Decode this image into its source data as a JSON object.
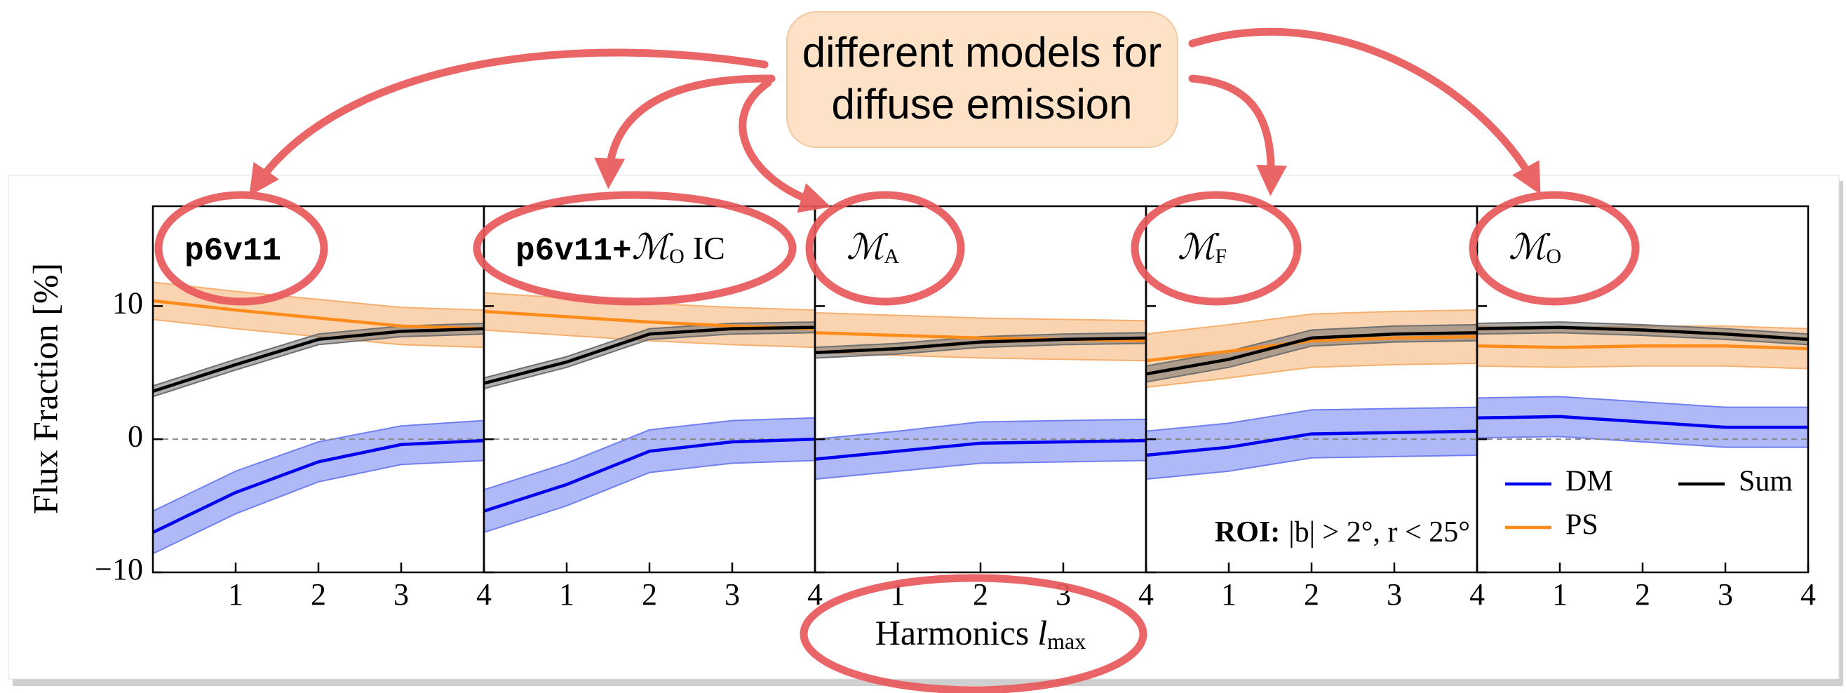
{
  "figure": {
    "callout": [
      "different models for",
      "diffuse emission"
    ]
  },
  "chart_data": [
    {
      "type": "line",
      "title": "p6v11",
      "y_label": "Flux Fraction [%]",
      "x": [
        0,
        1,
        2,
        3,
        4
      ],
      "xlim": [
        0,
        4
      ],
      "xticks": [
        1,
        2,
        3,
        4
      ],
      "ylim": [
        -10,
        17.5
      ],
      "yticks": [
        {
          "value": -10,
          "label": "−10"
        },
        0,
        10
      ],
      "zero_line": true,
      "series": [
        {
          "color": "#0000ee",
          "band_color": "#7080f0",
          "values": [
            -7,
            -4,
            -1.7,
            -0.4,
            -0.1
          ],
          "lower": [
            -8.6,
            -5.6,
            -3.2,
            -1.9,
            -1.6
          ],
          "upper": [
            -5.4,
            -2.4,
            -0.2,
            1.0,
            1.4
          ]
        },
        {
          "color": "#ff8c1a",
          "band_color": "#f5b070",
          "values": [
            10.4,
            9.7,
            9.1,
            8.5,
            8.3
          ],
          "lower": [
            9.0,
            8.3,
            7.7,
            7.1,
            6.9
          ],
          "upper": [
            11.8,
            11.1,
            10.5,
            9.9,
            9.7
          ]
        },
        {
          "color": "#000000",
          "band_color": "#707070",
          "values": [
            3.6,
            5.6,
            7.5,
            8.1,
            8.3
          ],
          "lower": [
            3.2,
            5.2,
            7.1,
            7.7,
            7.9
          ],
          "upper": [
            4.0,
            6.0,
            7.9,
            8.5,
            8.7
          ]
        }
      ]
    },
    {
      "type": "line",
      "title": "p6v11+",
      "title_math": "ℳ",
      "title_sub": "O",
      "title_suffix": "IC",
      "x": [
        0,
        1,
        2,
        3,
        4
      ],
      "xlim": [
        0,
        4
      ],
      "xticks": [
        1,
        2,
        3,
        4
      ],
      "ylim": [
        -10,
        17.5
      ],
      "yticks": [
        -10,
        0,
        10
      ],
      "zero_line": true,
      "series": [
        {
          "color": "#0000ee",
          "band_color": "#7080f0",
          "values": [
            -5.4,
            -3.4,
            -0.9,
            -0.2,
            0.0
          ],
          "lower": [
            -7.0,
            -5.0,
            -2.5,
            -1.8,
            -1.6
          ],
          "upper": [
            -3.8,
            -1.8,
            0.7,
            1.4,
            1.6
          ]
        },
        {
          "color": "#ff8c1a",
          "band_color": "#f5b070",
          "values": [
            9.6,
            9.2,
            8.8,
            8.5,
            8.3
          ],
          "lower": [
            8.2,
            7.8,
            7.4,
            7.1,
            6.9
          ],
          "upper": [
            11.0,
            10.6,
            10.2,
            9.9,
            9.7
          ]
        },
        {
          "color": "#000000",
          "band_color": "#707070",
          "values": [
            4.2,
            5.8,
            7.9,
            8.3,
            8.4
          ],
          "lower": [
            3.8,
            5.4,
            7.5,
            7.9,
            8.0
          ],
          "upper": [
            4.6,
            6.2,
            8.3,
            8.7,
            8.8
          ]
        }
      ]
    },
    {
      "type": "line",
      "title_math": "ℳ",
      "title_sub": "A",
      "x_label": "Harmonics",
      "x_label_var": "l",
      "x_label_sub": "max",
      "x": [
        0,
        1,
        2,
        3,
        4
      ],
      "xlim": [
        0,
        4
      ],
      "xticks": [
        1,
        2,
        3,
        4
      ],
      "ylim": [
        -10,
        17.5
      ],
      "yticks": [
        -10,
        0,
        10
      ],
      "zero_line": true,
      "series": [
        {
          "color": "#0000ee",
          "band_color": "#7080f0",
          "values": [
            -1.5,
            -0.9,
            -0.3,
            -0.2,
            -0.1
          ],
          "lower": [
            -3.0,
            -2.4,
            -1.8,
            -1.7,
            -1.6
          ],
          "upper": [
            0.0,
            0.6,
            1.3,
            1.4,
            1.5
          ]
        },
        {
          "color": "#ff8c1a",
          "band_color": "#f5b070",
          "values": [
            8.0,
            7.8,
            7.6,
            7.5,
            7.4
          ],
          "lower": [
            6.5,
            6.3,
            6.1,
            6.0,
            5.9
          ],
          "upper": [
            9.5,
            9.3,
            9.1,
            9.0,
            8.9
          ]
        },
        {
          "color": "#000000",
          "band_color": "#707070",
          "values": [
            6.5,
            6.8,
            7.3,
            7.5,
            7.6
          ],
          "lower": [
            6.1,
            6.4,
            6.9,
            7.1,
            7.2
          ],
          "upper": [
            6.9,
            7.2,
            7.7,
            7.9,
            8.0
          ]
        }
      ]
    },
    {
      "type": "line",
      "title_math": "ℳ",
      "title_sub": "F",
      "roi_label": "ROI:",
      "roi_text": "|b| > 2°, r < 25°",
      "x": [
        0,
        1,
        2,
        3,
        4
      ],
      "xlim": [
        0,
        4
      ],
      "xticks": [
        1,
        2,
        3,
        4
      ],
      "ylim": [
        -10,
        17.5
      ],
      "yticks": [
        -10,
        0,
        10
      ],
      "zero_line": true,
      "series": [
        {
          "color": "#0000ee",
          "band_color": "#7080f0",
          "values": [
            -1.2,
            -0.6,
            0.4,
            0.5,
            0.6
          ],
          "lower": [
            -3.0,
            -2.4,
            -1.4,
            -1.3,
            -1.2
          ],
          "upper": [
            0.6,
            1.2,
            2.2,
            2.3,
            2.4
          ]
        },
        {
          "color": "#ff8c1a",
          "band_color": "#f5b070",
          "values": [
            5.9,
            6.6,
            7.4,
            7.6,
            7.7
          ],
          "lower": [
            3.9,
            4.6,
            5.4,
            5.6,
            5.7
          ],
          "upper": [
            7.9,
            8.6,
            9.4,
            9.6,
            9.7
          ]
        },
        {
          "color": "#000000",
          "band_color": "#707070",
          "values": [
            4.9,
            6.0,
            7.6,
            7.9,
            8.0
          ],
          "lower": [
            4.3,
            5.4,
            7.0,
            7.3,
            7.4
          ],
          "upper": [
            5.5,
            6.6,
            8.2,
            8.5,
            8.6
          ]
        }
      ]
    },
    {
      "type": "line",
      "title_math": "ℳ",
      "title_sub": "O",
      "legend": "lower right",
      "x": [
        0,
        1,
        2,
        3,
        4
      ],
      "xlim": [
        0,
        4
      ],
      "xticks": [
        1,
        2,
        3,
        4
      ],
      "ylim": [
        -10,
        17.5
      ],
      "yticks": [
        -10,
        0,
        10
      ],
      "zero_line": true,
      "series": [
        {
          "name": "DM",
          "color": "#0000ee",
          "band_color": "#7080f0",
          "values": [
            1.6,
            1.7,
            1.3,
            0.9,
            0.9
          ],
          "lower": [
            0.1,
            0.2,
            -0.2,
            -0.6,
            -0.6
          ],
          "upper": [
            3.1,
            3.2,
            2.8,
            2.4,
            2.4
          ]
        },
        {
          "name": "PS",
          "color": "#ff8c1a",
          "band_color": "#f5b070",
          "values": [
            7.0,
            6.9,
            7.0,
            7.0,
            6.8
          ],
          "lower": [
            5.5,
            5.4,
            5.5,
            5.5,
            5.3
          ],
          "upper": [
            8.5,
            8.4,
            8.5,
            8.5,
            8.3
          ]
        },
        {
          "name": "Sum",
          "color": "#000000",
          "band_color": "#707070",
          "values": [
            8.3,
            8.4,
            8.2,
            7.9,
            7.5
          ],
          "lower": [
            7.9,
            8.0,
            7.8,
            7.5,
            7.1
          ],
          "upper": [
            8.7,
            8.8,
            8.6,
            8.3,
            7.9
          ]
        }
      ]
    }
  ]
}
